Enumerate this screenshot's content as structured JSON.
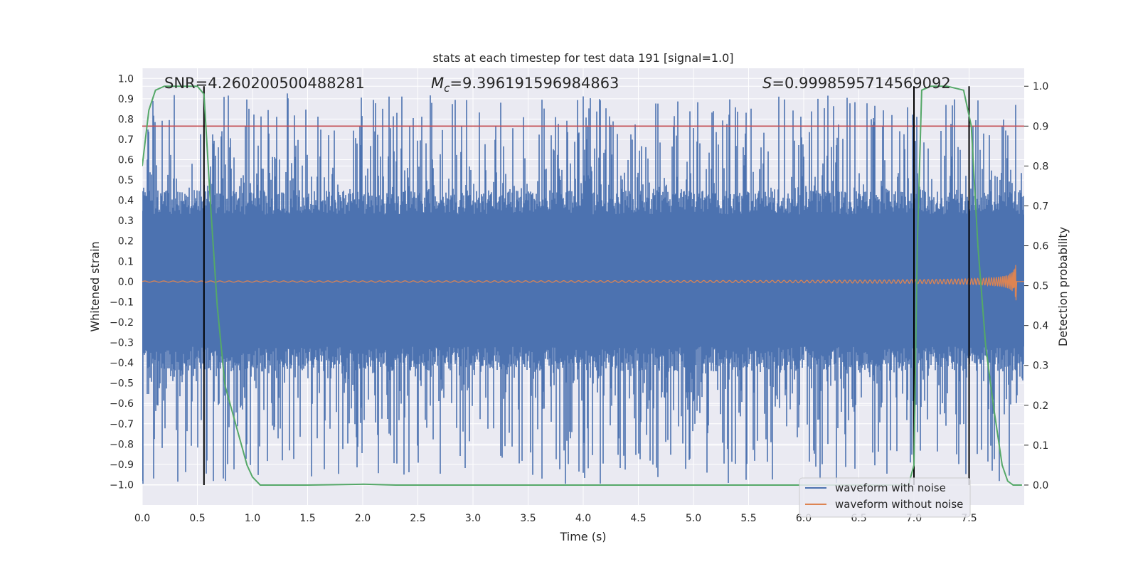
{
  "chart_data": {
    "type": "line",
    "title": "stats at each timestep for test data 191 [signal=1.0]",
    "xlabel": "Time (s)",
    "ylabel_left": "Whitened strain",
    "ylabel_right": "Detection probability",
    "xlim": [
      0.0,
      8.0
    ],
    "ylim_left": [
      -1.1,
      1.05
    ],
    "ylim_right": [
      -0.05,
      1.045
    ],
    "x_ticks": [
      "0.0",
      "0.5",
      "1.0",
      "1.5",
      "2.0",
      "2.5",
      "3.0",
      "3.5",
      "4.0",
      "4.5",
      "5.0",
      "5.5",
      "6.0",
      "6.5",
      "7.0",
      "7.5"
    ],
    "y_left_ticks": [
      "1.0",
      "0.9",
      "0.8",
      "0.7",
      "0.6",
      "0.5",
      "0.4",
      "0.3",
      "0.2",
      "0.1",
      "0.0",
      "−0.1",
      "−0.2",
      "−0.3",
      "−0.4",
      "−0.5",
      "−0.6",
      "−0.7",
      "−0.8",
      "−0.9",
      "−1.0"
    ],
    "y_right_ticks": [
      "1.0",
      "0.9",
      "0.8",
      "0.7",
      "0.6",
      "0.5",
      "0.4",
      "0.3",
      "0.2",
      "0.1",
      "0.0"
    ],
    "annotations": {
      "snr": "SNR=4.260200500488281",
      "mc_symbol": "M",
      "mc_sub": "c",
      "mc_value": "=9.396191596984863",
      "s_symbol": "S",
      "s_value": "=0.9998595714569092"
    },
    "threshold_probability": 0.9,
    "vertical_lines_s": [
      0.56,
      7.0,
      7.5
    ],
    "series": [
      {
        "name": "waveform with noise",
        "color": "#4c72b0",
        "axis": "left",
        "band": {
          "core_min": -0.32,
          "core_max": 0.33,
          "peak_max": 0.93,
          "trough_min": -1.0
        }
      },
      {
        "name": "waveform without noise",
        "color": "#dd8452",
        "axis": "left",
        "envelope_peak": 0.17
      },
      {
        "name": "detection probability",
        "color": "#55a868",
        "axis": "right",
        "x": [
          0.0,
          0.06,
          0.12,
          0.2,
          0.3,
          0.4,
          0.5,
          0.56,
          0.62,
          0.68,
          0.75,
          0.85,
          0.95,
          1.0,
          1.07,
          1.2,
          1.5,
          2.0,
          2.3,
          3.0,
          5.0,
          6.5,
          6.95,
          7.0,
          7.03,
          7.07,
          7.15,
          7.3,
          7.45,
          7.52,
          7.58,
          7.65,
          7.72,
          7.8,
          7.85,
          7.9,
          7.98
        ],
        "values": [
          0.8,
          0.94,
          0.99,
          1.0,
          1.0,
          1.0,
          1.0,
          0.98,
          0.7,
          0.45,
          0.25,
          0.15,
          0.05,
          0.02,
          0.0,
          0.0,
          0.0,
          0.002,
          0.0,
          0.0,
          0.0,
          0.0,
          0.0,
          0.05,
          0.6,
          0.99,
          1.0,
          1.0,
          0.99,
          0.9,
          0.6,
          0.35,
          0.2,
          0.05,
          0.01,
          0.0,
          0.0
        ]
      }
    ],
    "legend": {
      "position": "bottom-right",
      "entries": [
        {
          "label": "waveform with noise",
          "color": "#4c72b0"
        },
        {
          "label": "waveform without noise",
          "color": "#dd8452"
        }
      ]
    },
    "colors": {
      "background": "#eaeaf2",
      "grid": "#ffffff",
      "threshold": "#c44e52",
      "vline": "#000000"
    }
  }
}
